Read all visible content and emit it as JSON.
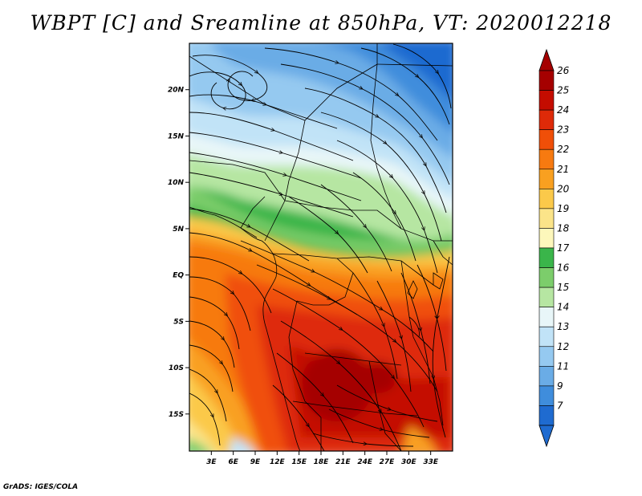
{
  "title": "WBPT [C] and Sreamline at 850hPa, VT: 2020012218",
  "footer": "GrADS: IGES/COLA",
  "map": {
    "lon_range": [
      0,
      36
    ],
    "lat_range": [
      -19,
      25
    ],
    "x_ticks": [
      {
        "value": 3,
        "label": "3E"
      },
      {
        "value": 6,
        "label": "6E"
      },
      {
        "value": 9,
        "label": "9E"
      },
      {
        "value": 12,
        "label": "12E"
      },
      {
        "value": 15,
        "label": "15E"
      },
      {
        "value": 18,
        "label": "18E"
      },
      {
        "value": 21,
        "label": "21E"
      },
      {
        "value": 24,
        "label": "24E"
      },
      {
        "value": 27,
        "label": "27E"
      },
      {
        "value": 30,
        "label": "30E"
      },
      {
        "value": 33,
        "label": "33E"
      }
    ],
    "y_ticks": [
      {
        "value": 20,
        "label": "20N"
      },
      {
        "value": 15,
        "label": "15N"
      },
      {
        "value": 10,
        "label": "10N"
      },
      {
        "value": 5,
        "label": "5N"
      },
      {
        "value": 0,
        "label": "EQ"
      },
      {
        "value": -5,
        "label": "5S"
      },
      {
        "value": -10,
        "label": "10S"
      },
      {
        "value": -15,
        "label": "15S"
      }
    ]
  },
  "colorbar": {
    "labels": [
      "26",
      "25",
      "24",
      "23",
      "22",
      "21",
      "20",
      "19",
      "18",
      "17",
      "16",
      "15",
      "14",
      "13",
      "12",
      "11",
      "9",
      "7"
    ],
    "colors": [
      "#a50000",
      "#c40c00",
      "#de2a08",
      "#f04f08",
      "#f77a10",
      "#f9a020",
      "#fbc94a",
      "#fbe489",
      "#fdf7bb",
      "#3ab54a",
      "#7ccd6b",
      "#b6e6a2",
      "#e8f6f8",
      "#c1e3f7",
      "#95c9f0",
      "#6aace6",
      "#3f8ddc",
      "#1f6bd0"
    ],
    "top_color": "#a50000",
    "bottom_color": "#1f6bd0"
  }
}
